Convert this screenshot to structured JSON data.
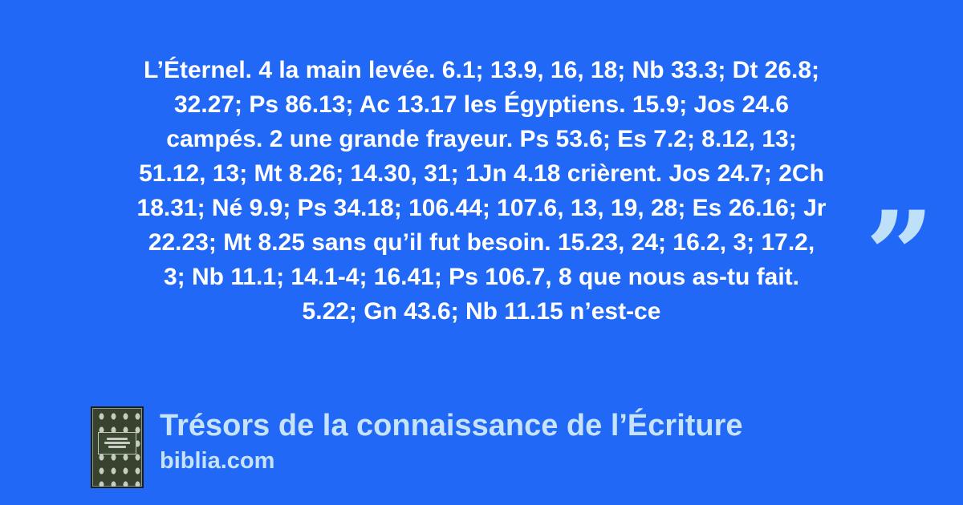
{
  "card": {
    "background_color": "#2168f6",
    "accent_color": "#bee0f8",
    "text_color": "#ffffff"
  },
  "quote": {
    "open_mark": "“",
    "close_mark": "”",
    "lines": [
      "L’Éternel. 4 la main levée. 6.1; 13.9, 16, 18; Nb 33.3; Dt 26.8;",
      "32.27; Ps 86.13; Ac 13.17 les Égyptiens. 15.9; Jos 24.6",
      "campés. 2 une grande frayeur. Ps 53.6; Es 7.2; 8.12, 13;",
      "51.12, 13; Mt 8.26; 14.30, 31; 1Jn 4.18 crièrent. Jos 24.7; 2Ch",
      "18.31; Né 9.9; Ps 34.18; 106.44; 107.6, 13, 19, 28; Es 26.16; Jr",
      "22.23; Mt 8.25 sans qu’il fut besoin. 15.23, 24; 16.2, 3; 17.2,",
      "3; Nb 11.1; 14.1-4; 16.41; Ps 106.7, 8 que nous as-tu fait.",
      "5.22; Gn 43.6; Nb 11.15 n’est-ce"
    ]
  },
  "footer": {
    "title": "Trésors de la connaissance de l’Écriture",
    "site": "biblia.com"
  }
}
